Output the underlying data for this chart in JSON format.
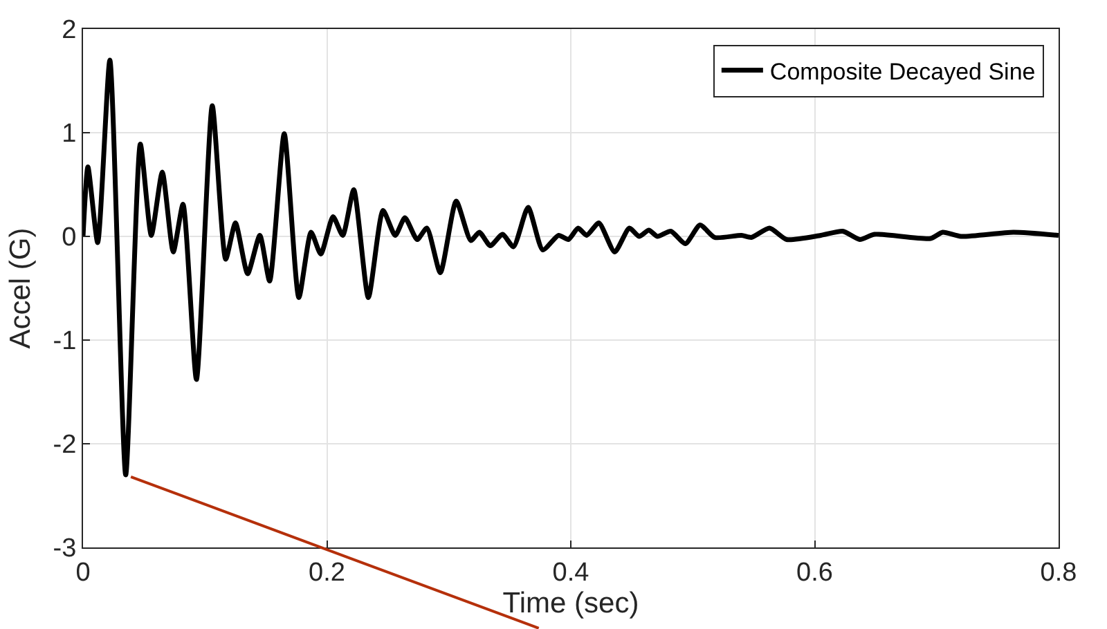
{
  "chart_data": {
    "type": "line",
    "xlabel": "Time (sec)",
    "ylabel": "Accel (G)",
    "xlim": [
      0,
      0.8
    ],
    "ylim": [
      -3,
      2
    ],
    "xticks": [
      0,
      0.2,
      0.4,
      0.6,
      0.8
    ],
    "yticks": [
      -3,
      -2,
      -1,
      0,
      1,
      2
    ],
    "grid": true,
    "legend": "top right",
    "marker": "none",
    "line_style": "solid",
    "series": [
      {
        "name": "Composite Decayed Sine",
        "color": "#000000",
        "x": [
          0,
          0.004,
          0.012,
          0.022,
          0.035,
          0.047,
          0.056,
          0.065,
          0.074,
          0.082,
          0.093,
          0.106,
          0.117,
          0.125,
          0.135,
          0.145,
          0.153,
          0.165,
          0.177,
          0.187,
          0.195,
          0.205,
          0.213,
          0.222,
          0.234,
          0.246,
          0.256,
          0.264,
          0.274,
          0.282,
          0.293,
          0.306,
          0.318,
          0.325,
          0.334,
          0.344,
          0.353,
          0.365,
          0.377,
          0.39,
          0.398,
          0.406,
          0.413,
          0.423,
          0.436,
          0.448,
          0.456,
          0.464,
          0.471,
          0.482,
          0.494,
          0.506,
          0.518,
          0.54,
          0.548,
          0.563,
          0.577,
          0.605,
          0.623,
          0.637,
          0.649,
          0.695,
          0.705,
          0.72,
          0.763,
          0.8
        ],
        "values": [
          0,
          0.67,
          -0.06,
          1.7,
          -2.3,
          0.89,
          0.01,
          0.62,
          -0.15,
          0.31,
          -1.38,
          1.26,
          -0.22,
          0.13,
          -0.36,
          0.01,
          -0.43,
          0.99,
          -0.59,
          0.04,
          -0.17,
          0.19,
          0.01,
          0.45,
          -0.59,
          0.25,
          0.01,
          0.18,
          -0.03,
          0.08,
          -0.35,
          0.34,
          -0.04,
          0.04,
          -0.09,
          0.02,
          -0.1,
          0.28,
          -0.13,
          0.01,
          -0.03,
          0.08,
          0.01,
          0.13,
          -0.15,
          0.08,
          0,
          0.06,
          0,
          0.05,
          -0.07,
          0.11,
          -0.01,
          0.01,
          -0.01,
          0.08,
          -0.03,
          0.01,
          0.05,
          -0.03,
          0.02,
          -0.02,
          0.04,
          0,
          0.04,
          0.01
        ]
      }
    ]
  }
}
